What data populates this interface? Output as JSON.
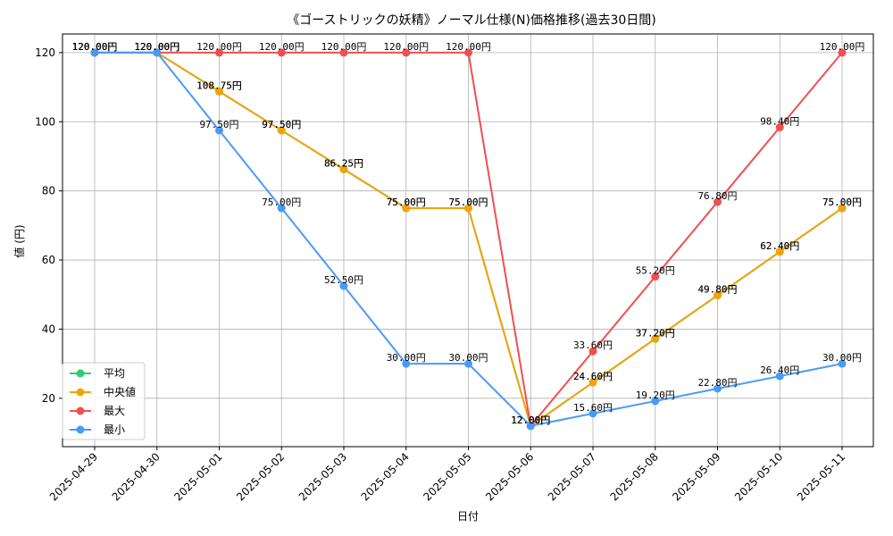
{
  "chart_data": {
    "type": "line",
    "title": "《ゴーストリックの妖精》ノーマル仕様(N)価格推移(過去30日間)",
    "xlabel": "日付",
    "ylabel": "値 (円)",
    "ylim": [
      6.0,
      125.4
    ],
    "yticks": [
      20,
      40,
      60,
      80,
      100,
      120
    ],
    "grid": true,
    "legend_position": "lower-left",
    "categories": [
      "2025-04-29",
      "2025-04-30",
      "2025-05-01",
      "2025-05-02",
      "2025-05-03",
      "2025-05-04",
      "2025-05-05",
      "2025-05-06",
      "2025-05-07",
      "2025-05-08",
      "2025-05-09",
      "2025-05-10",
      "2025-05-11"
    ],
    "series": [
      {
        "name": "平均",
        "color": "#2ecc71",
        "values": [
          120.0,
          120.0,
          108.75,
          97.5,
          86.25,
          75.0,
          75.0,
          12.0,
          24.6,
          37.2,
          49.8,
          62.4,
          75.0
        ]
      },
      {
        "name": "中央値",
        "color": "#f0a30a",
        "values": [
          120.0,
          120.0,
          108.75,
          97.5,
          86.25,
          75.0,
          75.0,
          12.0,
          24.6,
          37.2,
          49.8,
          62.4,
          75.0
        ]
      },
      {
        "name": "最大",
        "color": "#ef4f4f",
        "values": [
          120.0,
          120.0,
          120.0,
          120.0,
          120.0,
          120.0,
          120.0,
          12.0,
          33.6,
          55.2,
          76.8,
          98.4,
          120.0
        ]
      },
      {
        "name": "最小",
        "color": "#4a9af5",
        "values": [
          120.0,
          120.0,
          97.5,
          75.0,
          52.5,
          30.0,
          30.0,
          12.0,
          15.6,
          19.2,
          22.8,
          26.4,
          30.0
        ]
      }
    ],
    "data_labels": {
      "平均": [
        "120.00円",
        "120.00円",
        "108.75円",
        "97.50円",
        "86.25円",
        "75.00円",
        "75.00円",
        "12.00円",
        "24.60円",
        "37.20円",
        "49.80円",
        "62.40円",
        "75.00円"
      ],
      "中央値": [
        "120.00円",
        "120.00円",
        "108.75円",
        "97.50円",
        "86.25円",
        "75.00円",
        "75.00円",
        "12.00円",
        "24.60円",
        "37.20円",
        "49.80円",
        "62.40円",
        "75.00円"
      ],
      "最大": [
        "120.00円",
        "120.00円",
        "120.00円",
        "120.00円",
        "120.00円",
        "120.00円",
        "120.00円",
        "12.00円",
        "33.60円",
        "55.20円",
        "76.80円",
        "98.40円",
        "120.00円"
      ],
      "最小": [
        "120.00円",
        "120.00円",
        "97.50円",
        "75.00円",
        "52.50円",
        "30.00円",
        "30.00円",
        "12.00円",
        "15.60円",
        "19.20円",
        "22.80円",
        "26.40円",
        "30.00円"
      ]
    }
  }
}
